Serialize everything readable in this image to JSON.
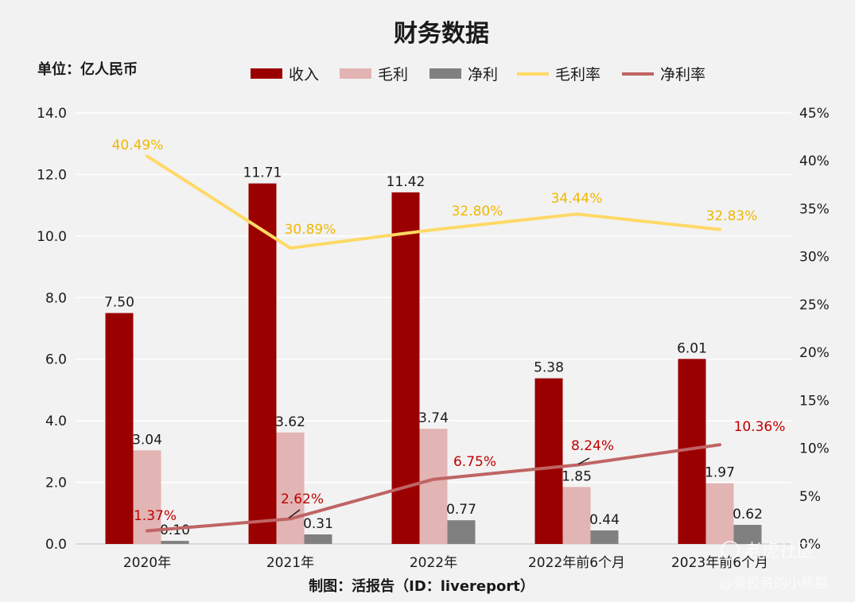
{
  "chart_data": {
    "type": "bar",
    "title": "财务数据",
    "unit_label": "单位：亿人民币",
    "footer": "制图：活报告（ID：livereport）",
    "watermark": {
      "line1": "老虎社区",
      "line2": "@爱投资的小熊猫"
    },
    "categories": [
      "2020年",
      "2021年",
      "2022年",
      "2022年前6个月",
      "2023年前6个月"
    ],
    "y_left": {
      "range": [
        0,
        14
      ],
      "ticks": [
        "0.0",
        "2.0",
        "4.0",
        "6.0",
        "8.0",
        "10.0",
        "12.0",
        "14.0"
      ]
    },
    "y_right": {
      "range": [
        0,
        45
      ],
      "ticks": [
        "0%",
        "5%",
        "10%",
        "15%",
        "20%",
        "25%",
        "30%",
        "35%",
        "40%",
        "45%"
      ]
    },
    "grid": true,
    "legend_position": "top",
    "bar_series": [
      {
        "name": "收入",
        "color": "#9b0000",
        "values": [
          7.5,
          11.71,
          11.42,
          5.38,
          6.01
        ],
        "labels": [
          "7.50",
          "11.71",
          "11.42",
          "5.38",
          "6.01"
        ]
      },
      {
        "name": "毛利",
        "color": "#e2b4b4",
        "values": [
          3.04,
          3.62,
          3.74,
          1.85,
          1.97
        ],
        "labels": [
          "3.04",
          "3.62",
          "3.74",
          "1.85",
          "1.97"
        ]
      },
      {
        "name": "净利",
        "color": "#808080",
        "values": [
          0.1,
          0.31,
          0.77,
          0.44,
          0.62
        ],
        "labels": [
          "0.10",
          "0.31",
          "0.77",
          "0.44",
          "0.62"
        ]
      }
    ],
    "line_series": [
      {
        "name": "毛利率",
        "color": "#ffd966",
        "label_color": "#f0b800",
        "values": [
          40.49,
          30.89,
          32.8,
          34.44,
          32.83
        ],
        "labels": [
          "40.49%",
          "30.89%",
          "32.80%",
          "34.44%",
          "32.83%"
        ]
      },
      {
        "name": "净利率",
        "color": "#c06464",
        "label_color": "#c00000",
        "values": [
          1.37,
          2.62,
          6.75,
          8.24,
          10.36
        ],
        "labels": [
          "1.37%",
          "2.62%",
          "6.75%",
          "8.24%",
          "10.36%"
        ]
      }
    ]
  }
}
